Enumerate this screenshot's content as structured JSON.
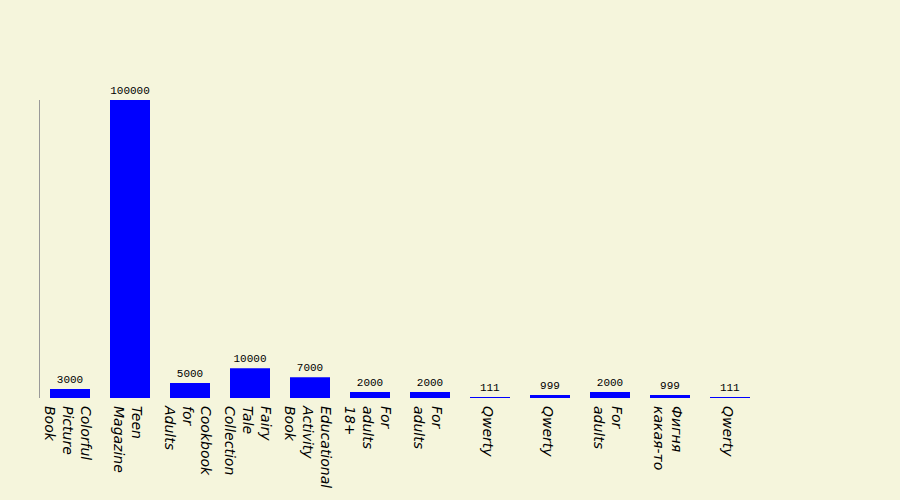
{
  "chart_data": {
    "type": "bar",
    "categories": [
      "Colorful Picture Book",
      "Teen Magazine",
      "Cookbook for Adults",
      "Fairy Tale Collection",
      "Educational Activity Book",
      "For adults 18+",
      "For adults",
      "Qwerty",
      "Qwerty",
      "For adults",
      "Фигня какая-то",
      "Qwerty"
    ],
    "values": [
      3000,
      100000,
      5000,
      10000,
      7000,
      2000,
      2000,
      111,
      999,
      2000,
      999,
      111
    ],
    "color": "#0000ff",
    "ylim": [
      0,
      100000
    ],
    "yticks": [],
    "grid": false,
    "data_labels": true,
    "tick_labels": "x"
  }
}
